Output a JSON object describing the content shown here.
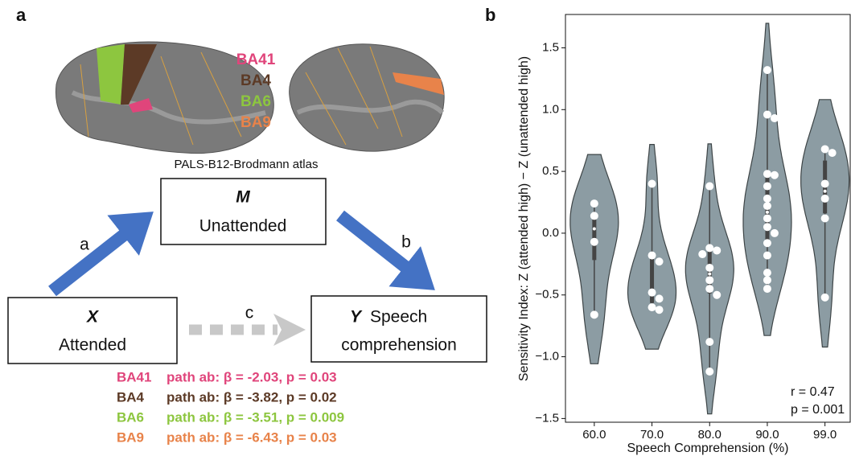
{
  "panel_labels": [
    "a",
    "b"
  ],
  "diagram": {
    "atlas_regions": [
      {
        "name": "BA41",
        "color": "#e0457b"
      },
      {
        "name": "BA4",
        "color": "#5c3a26"
      },
      {
        "name": "BA6",
        "color": "#8dc63f"
      },
      {
        "name": "BA9",
        "color": "#e8834a"
      }
    ],
    "atlas_caption": "PALS-B12-Brodmann atlas",
    "nodes": [
      {
        "symbol": "M",
        "lines": [
          "Unattended"
        ]
      },
      {
        "symbol": "X",
        "lines": [
          "Attended"
        ]
      },
      {
        "symbol": "Y",
        "lines": [
          "Speech",
          "comprehension"
        ]
      }
    ],
    "edges": [
      {
        "label": "a"
      },
      {
        "label": "b"
      },
      {
        "label": "c"
      }
    ],
    "results": [
      {
        "region": "BA41",
        "text": "path ab: β = -2.03, p = 0.03",
        "color": "#e0457b"
      },
      {
        "region": "BA4",
        "text": "path ab: β = -3.82, p = 0.02",
        "color": "#5c3a26"
      },
      {
        "region": "BA6",
        "text": "path ab: β = -3.51, p = 0.009",
        "color": "#8dc63f"
      },
      {
        "region": "BA9",
        "text": "path ab: β = -6.43, p = 0.03",
        "color": "#e8834a"
      }
    ]
  },
  "chart_data": {
    "type": "violin",
    "x_label": "Speech Comprehension (%)",
    "y_label": "Sensitivity Index: Z (attended high) − Z (unattended high)",
    "categories": [
      "60.0",
      "70.0",
      "80.0",
      "90.0",
      "99.0"
    ],
    "series": [
      {
        "name": null,
        "color": "#8c9ca3",
        "values": [
          [
            0.24,
            0.14,
            -0.07,
            -0.66
          ],
          [
            0.4,
            -0.18,
            -0.23,
            -0.48,
            -0.53,
            -0.6,
            -0.62
          ],
          [
            0.38,
            -0.12,
            -0.14,
            -0.17,
            -0.28,
            -0.38,
            -0.45,
            -0.5,
            -0.88,
            -1.12
          ],
          [
            1.32,
            0.96,
            0.93,
            0.48,
            0.47,
            0.38,
            0.28,
            0.22,
            0.12,
            0.05,
            0.0,
            -0.08,
            -0.18,
            -0.32,
            -0.38,
            -0.45
          ],
          [
            0.68,
            0.65,
            0.4,
            0.28,
            0.12,
            -0.52
          ]
        ]
      }
    ],
    "ylim": [
      -1.53,
      1.77
    ],
    "yticks": [
      {
        "value": -1.5,
        "label": "−1.5"
      },
      {
        "value": -1.0,
        "label": "−1.0"
      },
      {
        "value": -0.5,
        "label": "−0.5"
      },
      {
        "value": 0,
        "label": "0.0"
      },
      0.5,
      {
        "value": 1.0,
        "label": "1.0"
      },
      1.5
    ],
    "annotations": [
      "r = 0.47",
      "p = 0.001"
    ],
    "grid": false
  }
}
